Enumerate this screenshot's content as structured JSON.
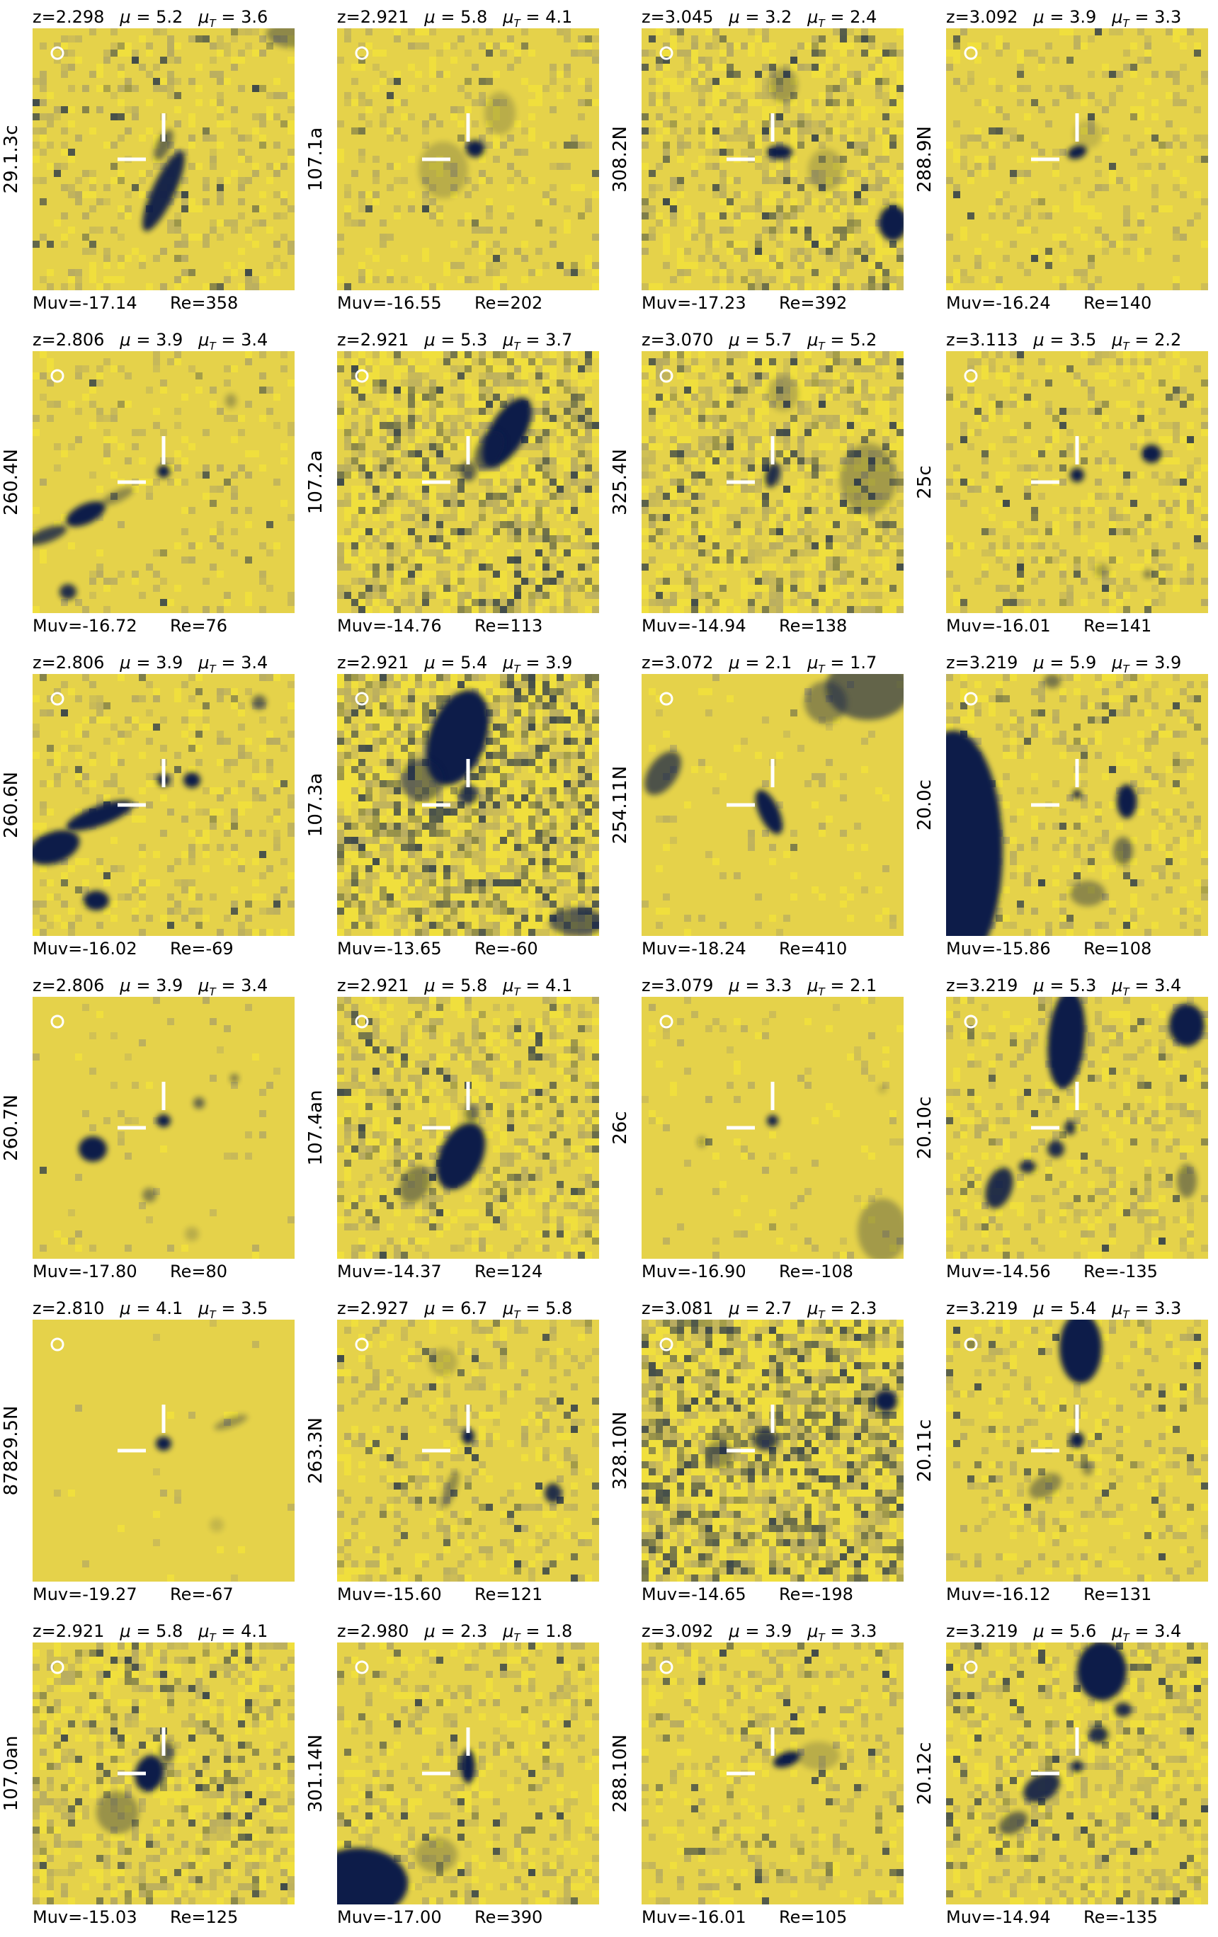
{
  "colors": {
    "background": "#e5d24a",
    "source": "#0b1f4a",
    "marker": "#ffffff"
  },
  "panels": [
    {
      "id": "29.1.3c",
      "z": "z=2.298",
      "mu": "5.2",
      "muT": "3.6",
      "muv": "Muv=-17.14",
      "re": "Re=358"
    },
    {
      "id": "107.1a",
      "z": "z=2.921",
      "mu": "5.8",
      "muT": "4.1",
      "muv": "Muv=-16.55",
      "re": "Re=202"
    },
    {
      "id": "308.2N",
      "z": "z=3.045",
      "mu": "3.2",
      "muT": "2.4",
      "muv": "Muv=-17.23",
      "re": "Re=392"
    },
    {
      "id": "288.9N",
      "z": "z=3.092",
      "mu": "3.9",
      "muT": "3.3",
      "muv": "Muv=-16.24",
      "re": "Re=140"
    },
    {
      "id": "260.4N",
      "z": "z=2.806",
      "mu": "3.9",
      "muT": "3.4",
      "muv": "Muv=-16.72",
      "re": "Re=76"
    },
    {
      "id": "107.2a",
      "z": "z=2.921",
      "mu": "5.3",
      "muT": "3.7",
      "muv": "Muv=-14.76",
      "re": "Re=113"
    },
    {
      "id": "325.4N",
      "z": "z=3.070",
      "mu": "5.7",
      "muT": "5.2",
      "muv": "Muv=-14.94",
      "re": "Re=138"
    },
    {
      "id": "25c",
      "z": "z=3.113",
      "mu": "3.5",
      "muT": "2.2",
      "muv": "Muv=-16.01",
      "re": "Re=141"
    },
    {
      "id": "260.6N",
      "z": "z=2.806",
      "mu": "3.9",
      "muT": "3.4",
      "muv": "Muv=-16.02",
      "re": "Re=-69"
    },
    {
      "id": "107.3a",
      "z": "z=2.921",
      "mu": "5.4",
      "muT": "3.9",
      "muv": "Muv=-13.65",
      "re": "Re=-60"
    },
    {
      "id": "254.11N",
      "z": "z=3.072",
      "mu": "2.1",
      "muT": "1.7",
      "muv": "Muv=-18.24",
      "re": "Re=410"
    },
    {
      "id": "20.0c",
      "z": "z=3.219",
      "mu": "5.9",
      "muT": "3.9",
      "muv": "Muv=-15.86",
      "re": "Re=108"
    },
    {
      "id": "260.7N",
      "z": "z=2.806",
      "mu": "3.9",
      "muT": "3.4",
      "muv": "Muv=-17.80",
      "re": "Re=80"
    },
    {
      "id": "107.4an",
      "z": "z=2.921",
      "mu": "5.8",
      "muT": "4.1",
      "muv": "Muv=-14.37",
      "re": "Re=124"
    },
    {
      "id": "26c",
      "z": "z=3.079",
      "mu": "3.3",
      "muT": "2.1",
      "muv": "Muv=-16.90",
      "re": "Re=-108"
    },
    {
      "id": "20.10c",
      "z": "z=3.219",
      "mu": "5.3",
      "muT": "3.4",
      "muv": "Muv=-14.56",
      "re": "Re=-135"
    },
    {
      "id": "87829.5N",
      "z": "z=2.810",
      "mu": "4.1",
      "muT": "3.5",
      "muv": "Muv=-19.27",
      "re": "Re=-67"
    },
    {
      "id": "263.3N",
      "z": "z=2.927",
      "mu": "6.7",
      "muT": "5.8",
      "muv": "Muv=-15.60",
      "re": "Re=121"
    },
    {
      "id": "328.10N",
      "z": "z=3.081",
      "mu": "2.7",
      "muT": "2.3",
      "muv": "Muv=-14.65",
      "re": "Re=-198"
    },
    {
      "id": "20.11c",
      "z": "z=3.219",
      "mu": "5.4",
      "muT": "3.3",
      "muv": "Muv=-16.12",
      "re": "Re=131"
    },
    {
      "id": "107.0an",
      "z": "z=2.921",
      "mu": "5.8",
      "muT": "4.1",
      "muv": "Muv=-15.03",
      "re": "Re=125"
    },
    {
      "id": "301.14N",
      "z": "z=2.980",
      "mu": "2.3",
      "muT": "1.8",
      "muv": "Muv=-17.00",
      "re": "Re=390"
    },
    {
      "id": "288.10N",
      "z": "z=3.092",
      "mu": "3.9",
      "muT": "3.3",
      "muv": "Muv=-16.01",
      "re": "Re=105"
    },
    {
      "id": "20.12c",
      "z": "z=3.219",
      "mu": "5.6",
      "muT": "3.4",
      "muv": "Muv=-14.94",
      "re": "Re=-135"
    }
  ]
}
